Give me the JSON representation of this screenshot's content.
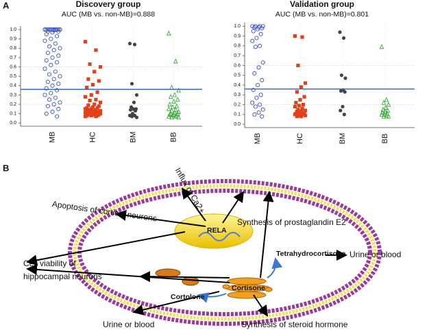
{
  "chart_data": [
    {
      "type": "strip",
      "panel_label": "A",
      "title": "Discovery group",
      "subtitle": "AUC (MB vs. non-MB)=0.888",
      "categories": [
        "MB",
        "HC",
        "BM",
        "BB"
      ],
      "colors": [
        "#3a4fc4",
        "#e0401c",
        "#444444",
        "#3aa83a"
      ],
      "markers": [
        "open-circle",
        "square",
        "circle",
        "open-triangle"
      ],
      "values": [
        [
          1,
          1,
          1,
          1,
          1,
          1,
          1,
          1,
          1,
          1,
          1,
          1,
          1,
          1,
          1,
          0.99,
          0.98,
          0.98,
          0.97,
          0.95,
          0.93,
          0.9,
          0.88,
          0.85,
          0.82,
          0.8,
          0.78,
          0.75,
          0.72,
          0.7,
          0.67,
          0.65,
          0.62,
          0.58,
          0.55,
          0.52,
          0.5,
          0.47,
          0.44,
          0.42,
          0.4,
          0.37,
          0.35,
          0.32,
          0.3,
          0.27,
          0.25,
          0.22,
          0.2,
          0.18,
          0.15,
          0.12,
          0.1,
          0.07
        ],
        [
          0.87,
          0.78,
          0.63,
          0.6,
          0.55,
          0.47,
          0.45,
          0.41,
          0.38,
          0.33,
          0.3,
          0.28,
          0.25,
          0.24,
          0.22,
          0.2,
          0.19,
          0.18,
          0.17,
          0.16,
          0.16,
          0.15,
          0.15,
          0.14,
          0.14,
          0.13,
          0.13,
          0.13,
          0.12,
          0.12,
          0.12,
          0.11,
          0.11,
          0.11,
          0.1,
          0.1,
          0.1,
          0.1,
          0.09,
          0.09,
          0.09,
          0.08,
          0.08,
          0.08,
          0.07,
          0.07
        ],
        [
          0.85,
          0.84,
          0.42,
          0.3,
          0.22,
          0.17,
          0.15,
          0.15,
          0.14,
          0.13,
          0.1,
          0.08,
          0.08,
          0.07,
          0.06
        ],
        [
          0.96,
          0.66,
          0.38,
          0.35,
          0.3,
          0.28,
          0.25,
          0.23,
          0.2,
          0.18,
          0.17,
          0.15,
          0.14,
          0.13,
          0.12,
          0.11,
          0.1,
          0.1,
          0.09,
          0.09,
          0.08,
          0.08,
          0.07,
          0.07,
          0.06,
          0.06
        ]
      ],
      "threshold": 0.36,
      "threshold_color": "#3a6fd0",
      "ylim": [
        -0.02,
        1.03
      ],
      "yticks": [
        {
          "value": 0,
          "label": "0.0"
        },
        0.1,
        0.2,
        0.3,
        0.4,
        0.5,
        0.6,
        0.7,
        0.8,
        0.9,
        {
          "value": 1,
          "label": "1.0"
        }
      ],
      "grid_lines": [
        0.2,
        0.6
      ]
    },
    {
      "type": "strip",
      "title": "Validation group",
      "subtitle": "AUC (MB vs. non-MB)=0.801",
      "categories": [
        "MB",
        "HC",
        "BM",
        "BB"
      ],
      "colors": [
        "#3a4fc4",
        "#e0401c",
        "#444444",
        "#3aa83a"
      ],
      "markers": [
        "open-circle",
        "square",
        "circle",
        "open-triangle"
      ],
      "values": [
        [
          1,
          1,
          1,
          1,
          0.99,
          0.99,
          0.98,
          0.97,
          0.95,
          0.92,
          0.88,
          0.85,
          0.8,
          0.79,
          0.63,
          0.58,
          0.52,
          0.45,
          0.4,
          0.35,
          0.3,
          0.27,
          0.22,
          0.2,
          0.18,
          0.15,
          0.12,
          0.1,
          0.08
        ],
        [
          0.9,
          0.89,
          0.6,
          0.42,
          0.38,
          0.33,
          0.28,
          0.25,
          0.22,
          0.2,
          0.19,
          0.18,
          0.16,
          0.15,
          0.14,
          0.13,
          0.13,
          0.12,
          0.12,
          0.11,
          0.11,
          0.1,
          0.1,
          0.1,
          0.09,
          0.09,
          0.08,
          0.08
        ],
        [
          0.94,
          0.88,
          0.5,
          0.47,
          0.35,
          0.34,
          0.33,
          0.18,
          0.14,
          0.1
        ],
        [
          0.79,
          0.25,
          0.22,
          0.2,
          0.17,
          0.15,
          0.14,
          0.13,
          0.12,
          0.11,
          0.1,
          0.1,
          0.09,
          0.08,
          0.08
        ]
      ],
      "threshold": 0.36,
      "threshold_color": "#3a6fd0",
      "ylim": [
        -0.02,
        1.03
      ],
      "yticks": [
        {
          "value": 0,
          "label": "0.0"
        },
        0.1,
        0.2,
        0.3,
        0.4,
        0.5,
        0.6,
        0.7,
        0.8,
        0.9,
        {
          "value": 1,
          "label": "1.0"
        }
      ],
      "grid_lines": [
        0.2,
        0.6
      ]
    }
  ],
  "diagram": {
    "panel_label": "B",
    "rela": "RELA",
    "cortisone": "Cortisone",
    "cortolone": "Cortolone",
    "tetrahydrocortisone": "Tetrahydrocortisone",
    "influx": "Influx of Ca2+",
    "apoptosis": "Apoptosis of cortical  neurons",
    "prostaglandin": "Synthesis of prostaglandin E2",
    "viability": [
      "Cell viability of",
      "hippocampal neurons"
    ],
    "urine_right": "Urine or blood",
    "urine_bottom": "Urine or blood",
    "steroid": "Synthesis of steroid hormone"
  }
}
